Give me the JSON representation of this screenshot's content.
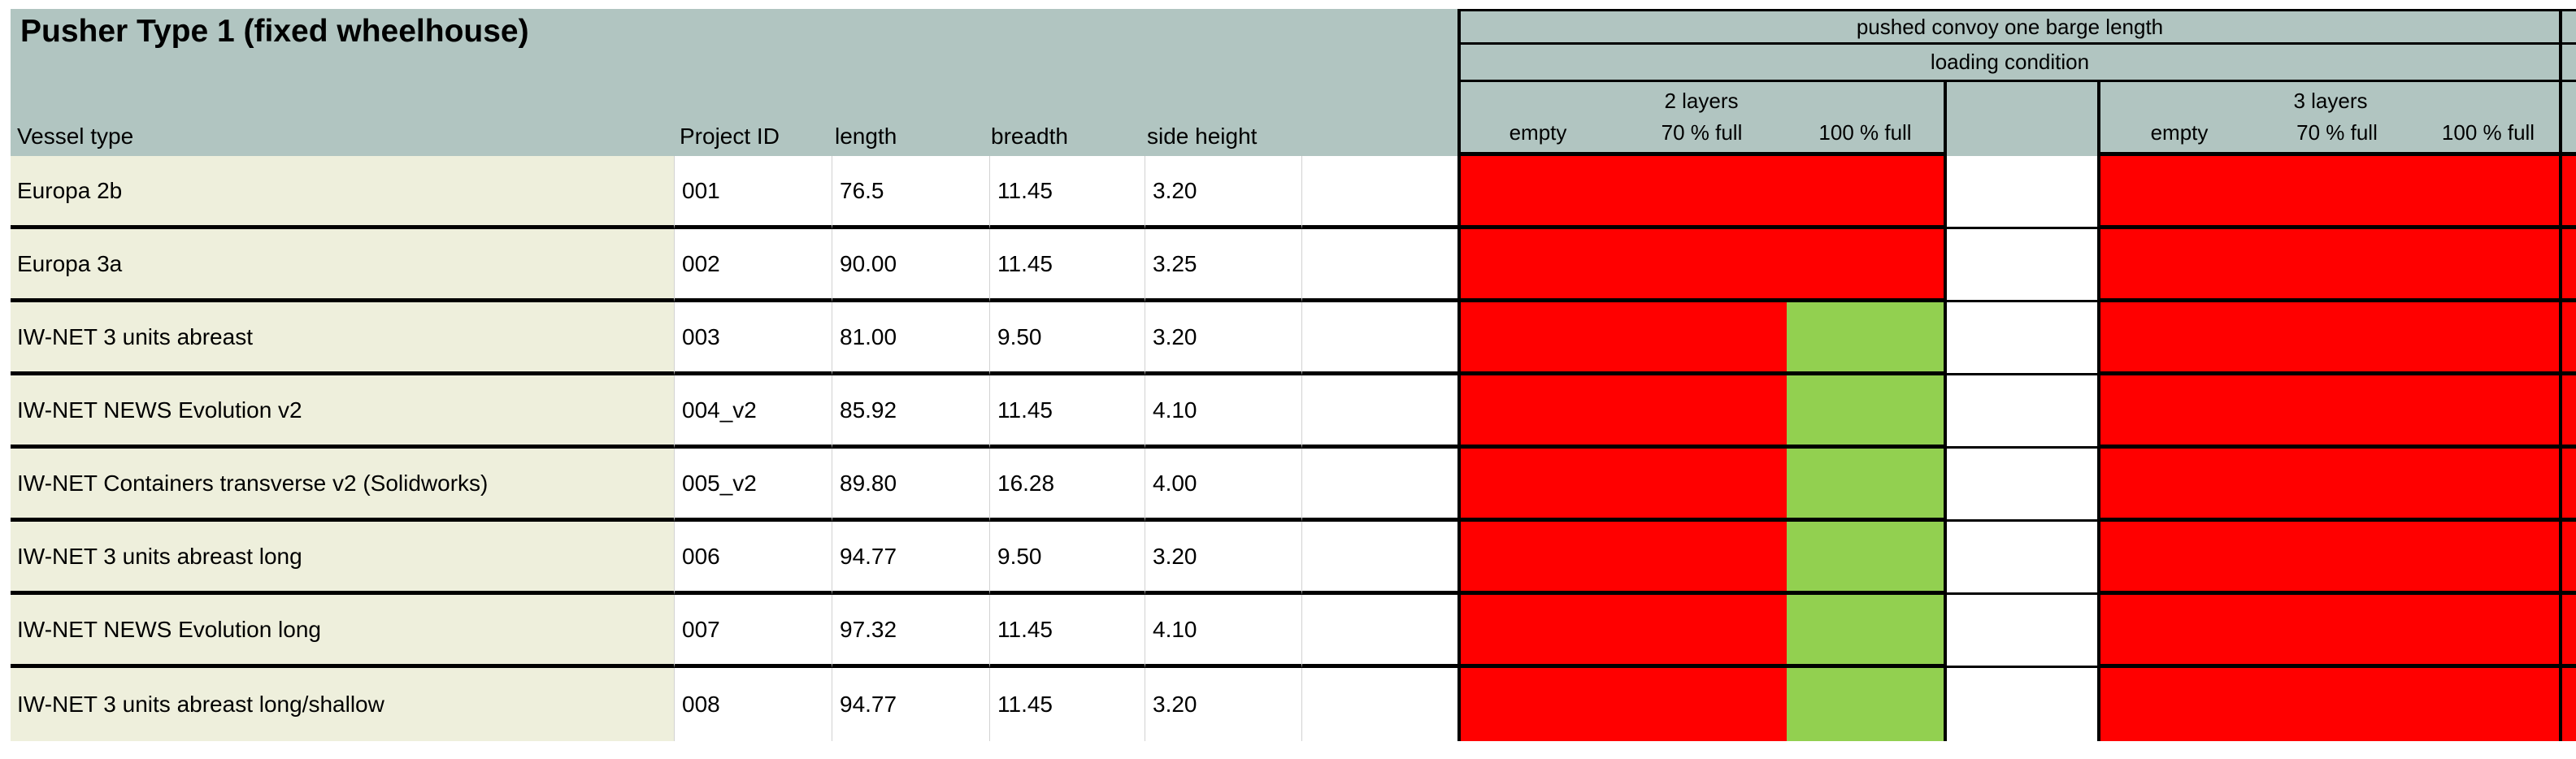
{
  "title": "Pusher Type 1 (fixed wheelhouse)",
  "columns": {
    "vessel": "Vessel type",
    "project_id": "Project ID",
    "length": "length",
    "breadth": "breadth",
    "side_height": "side height"
  },
  "convoy_header": {
    "top": "pushed convoy one barge length",
    "sub": "loading condition",
    "groups": [
      {
        "label": "2 layers",
        "conditions": [
          "empty",
          "70 % full",
          "100 % full"
        ]
      },
      {
        "label": "3 layers",
        "conditions": [
          "empty",
          "70 % full",
          "100 % full"
        ]
      }
    ]
  },
  "status_colors": {
    "red": "#ff0000",
    "green": "#92d050"
  },
  "theme_colors": {
    "header_background": "#b1c5c1",
    "vessel_column_background": "#eeefdc"
  },
  "rows": [
    {
      "vessel": "Europa 2b",
      "project_id": "001",
      "length": "76.5",
      "breadth": "11.45",
      "side_height": "3.20",
      "status": {
        "l2_empty": "red",
        "l2_70full": "red",
        "l2_100full": "red",
        "l3_empty": "red",
        "l3_70full": "red",
        "l3_100full": "red"
      }
    },
    {
      "vessel": "Europa 3a",
      "project_id": "002",
      "length": "90.00",
      "breadth": "11.45",
      "side_height": "3.25",
      "status": {
        "l2_empty": "red",
        "l2_70full": "red",
        "l2_100full": "red",
        "l3_empty": "red",
        "l3_70full": "red",
        "l3_100full": "red"
      }
    },
    {
      "vessel": "IW-NET 3 units abreast",
      "project_id": "003",
      "length": "81.00",
      "breadth": "9.50",
      "side_height": "3.20",
      "status": {
        "l2_empty": "red",
        "l2_70full": "red",
        "l2_100full": "green",
        "l3_empty": "red",
        "l3_70full": "red",
        "l3_100full": "red"
      }
    },
    {
      "vessel": "IW-NET NEWS Evolution v2",
      "project_id": "004_v2",
      "length": "85.92",
      "breadth": "11.45",
      "side_height": "4.10",
      "status": {
        "l2_empty": "red",
        "l2_70full": "red",
        "l2_100full": "green",
        "l3_empty": "red",
        "l3_70full": "red",
        "l3_100full": "red"
      }
    },
    {
      "vessel": "IW-NET Containers transverse v2 (Solidworks)",
      "project_id": "005_v2",
      "length": "89.80",
      "breadth": "16.28",
      "side_height": "4.00",
      "status": {
        "l2_empty": "red",
        "l2_70full": "red",
        "l2_100full": "green",
        "l3_empty": "red",
        "l3_70full": "red",
        "l3_100full": "red"
      }
    },
    {
      "vessel": "IW-NET 3 units abreast long",
      "project_id": "006",
      "length": "94.77",
      "breadth": "9.50",
      "side_height": "3.20",
      "status": {
        "l2_empty": "red",
        "l2_70full": "red",
        "l2_100full": "green",
        "l3_empty": "red",
        "l3_70full": "red",
        "l3_100full": "red"
      }
    },
    {
      "vessel": "IW-NET NEWS Evolution long",
      "project_id": "007",
      "length": "97.32",
      "breadth": "11.45",
      "side_height": "4.10",
      "status": {
        "l2_empty": "red",
        "l2_70full": "red",
        "l2_100full": "green",
        "l3_empty": "red",
        "l3_70full": "red",
        "l3_100full": "red"
      }
    },
    {
      "vessel": "IW-NET 3 units abreast long/shallow",
      "project_id": "008",
      "length": "94.77",
      "breadth": "11.45",
      "side_height": "3.20",
      "status": {
        "l2_empty": "red",
        "l2_70full": "red",
        "l2_100full": "green",
        "l3_empty": "red",
        "l3_70full": "red",
        "l3_100full": "red"
      }
    }
  ]
}
